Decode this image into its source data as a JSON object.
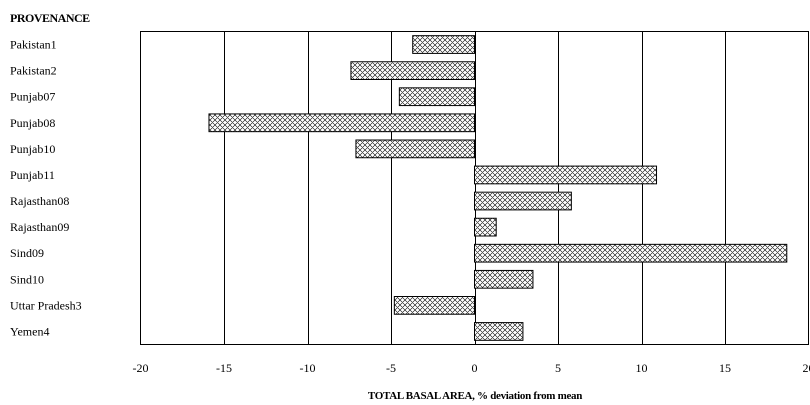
{
  "chart_data": {
    "type": "bar",
    "orientation": "horizontal",
    "title": "PROVENANCE",
    "xlabel": "TOTAL BASAL AREA, % deviation from mean",
    "ylabel": "",
    "xlim": [
      -20,
      20
    ],
    "xticks": [
      "-20",
      "-15",
      "-10",
      "-5",
      "0",
      "5",
      "10",
      "15",
      "20"
    ],
    "grid": "vertical",
    "bar_pattern": "crosshatch",
    "categories": [
      "Pakistan1",
      "Pakistan2",
      "Punjab07",
      "Punjab08",
      "Punjab10",
      "Punjab11",
      "Rajasthan08",
      "Rajasthan09",
      "Sind09",
      "Sind10",
      "Uttar Pradesh3",
      "Yemen4"
    ],
    "values": [
      -3.7,
      -7.4,
      -4.5,
      -15.9,
      -7.1,
      10.9,
      5.8,
      1.3,
      18.7,
      3.5,
      -4.8,
      2.9
    ]
  }
}
